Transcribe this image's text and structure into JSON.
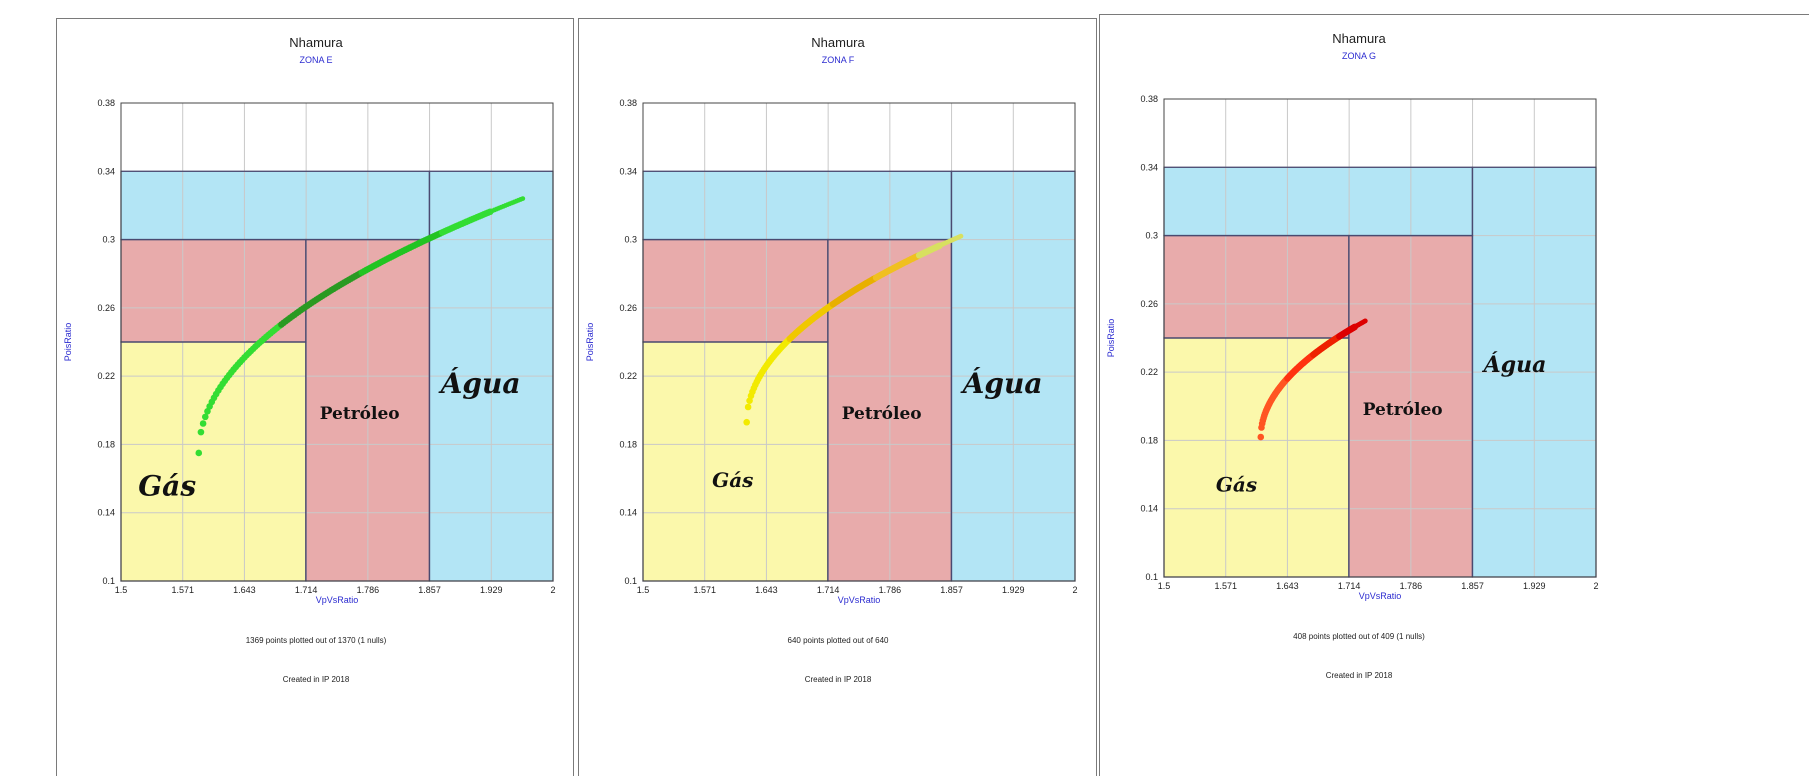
{
  "chart_data": [
    {
      "type": "scatter",
      "title": "Nhamura",
      "subtitle": "ZONA E",
      "xlabel": "VpVsRatio",
      "ylabel": "PoisRatio",
      "xlim": [
        1.5,
        2
      ],
      "ylim": [
        0.1,
        0.38
      ],
      "x_ticks": [
        "1.5",
        "1.571",
        "1.643",
        "1.714",
        "1.786",
        "1.857",
        "1.929",
        "2"
      ],
      "y_ticks": [
        "0.1",
        "0.14",
        "0.18",
        "0.22",
        "0.26",
        "0.3",
        "0.34",
        "0.38"
      ],
      "regions": [
        {
          "name": "Gás",
          "x": [
            1.5,
            1.714
          ],
          "y": [
            0.1,
            0.24
          ],
          "color": "#fbf8ab"
        },
        {
          "name": "Petróleo",
          "x": [
            1.714,
            1.857
          ],
          "y": [
            0.1,
            0.3
          ],
          "color": "#e8abab"
        },
        {
          "name": "",
          "x": [
            1.5,
            1.714
          ],
          "y": [
            0.24,
            0.3
          ],
          "color": "#e8abab"
        },
        {
          "name": "",
          "x": [
            1.5,
            1.857
          ],
          "y": [
            0.3,
            0.34
          ],
          "color": "#b3e5f5"
        },
        {
          "name": "Água",
          "x": [
            1.857,
            2
          ],
          "y": [
            0.1,
            0.34
          ],
          "color": "#b3e5f5"
        }
      ],
      "labels": [
        {
          "text": "Gás",
          "x": 1.52,
          "y": 0.15,
          "size": 28
        },
        {
          "text": "Petróleo",
          "x": 1.73,
          "y": 0.195,
          "size": 17
        },
        {
          "text": "Água",
          "x": 1.87,
          "y": 0.21,
          "size": 28
        }
      ],
      "series": [
        {
          "x_start": 1.59,
          "x_end": 1.965,
          "y_start": 0.175,
          "y_end": 0.324,
          "colors": [
            "#33dd33",
            "#2a9a22",
            "#22c422",
            "#33dd33"
          ]
        }
      ],
      "points_note": "1369 points plotted out of 1370 (1 nulls)",
      "created_note": "Created in IP 2018"
    },
    {
      "type": "scatter",
      "title": "Nhamura",
      "subtitle": "ZONA F",
      "xlabel": "VpVsRatio",
      "ylabel": "PoisRatio",
      "xlim": [
        1.5,
        2
      ],
      "ylim": [
        0.1,
        0.38
      ],
      "x_ticks": [
        "1.5",
        "1.571",
        "1.643",
        "1.714",
        "1.786",
        "1.857",
        "1.929",
        "2"
      ],
      "y_ticks": [
        "0.1",
        "0.14",
        "0.18",
        "0.22",
        "0.26",
        "0.3",
        "0.34",
        "0.38"
      ],
      "regions": [
        {
          "name": "Gás",
          "x": [
            1.5,
            1.714
          ],
          "y": [
            0.1,
            0.24
          ],
          "color": "#fbf8ab"
        },
        {
          "name": "Petróleo",
          "x": [
            1.714,
            1.857
          ],
          "y": [
            0.1,
            0.3
          ],
          "color": "#e8abab"
        },
        {
          "name": "",
          "x": [
            1.5,
            1.714
          ],
          "y": [
            0.24,
            0.3
          ],
          "color": "#e8abab"
        },
        {
          "name": "",
          "x": [
            1.5,
            1.857
          ],
          "y": [
            0.3,
            0.34
          ],
          "color": "#b3e5f5"
        },
        {
          "name": "Água",
          "x": [
            1.857,
            2
          ],
          "y": [
            0.1,
            0.34
          ],
          "color": "#b3e5f5"
        }
      ],
      "labels": [
        {
          "text": "Gás",
          "x": 1.58,
          "y": 0.155,
          "size": 20
        },
        {
          "text": "Petróleo",
          "x": 1.73,
          "y": 0.195,
          "size": 17
        },
        {
          "text": "Água",
          "x": 1.87,
          "y": 0.21,
          "size": 28
        }
      ],
      "series": [
        {
          "x_start": 1.62,
          "x_end": 1.868,
          "y_start": 0.193,
          "y_end": 0.302,
          "colors": [
            "#f2ea00",
            "#f0c800",
            "#e8b000",
            "#f0c020",
            "#d8e060"
          ]
        }
      ],
      "points_note": "640 points plotted out of 640",
      "created_note": "Created in IP 2018"
    },
    {
      "type": "scatter",
      "title": "Nhamura",
      "subtitle": "ZONA G",
      "xlabel": "VpVsRatio",
      "ylabel": "PoisRatio",
      "xlim": [
        1.5,
        2
      ],
      "ylim": [
        0.1,
        0.38
      ],
      "x_ticks": [
        "1.5",
        "1.571",
        "1.643",
        "1.714",
        "1.786",
        "1.857",
        "1.929",
        "2"
      ],
      "y_ticks": [
        "0.1",
        "0.14",
        "0.18",
        "0.22",
        "0.26",
        "0.3",
        "0.34",
        "0.38"
      ],
      "regions": [
        {
          "name": "Gás",
          "x": [
            1.5,
            1.714
          ],
          "y": [
            0.1,
            0.24
          ],
          "color": "#fbf8ab"
        },
        {
          "name": "Petróleo",
          "x": [
            1.714,
            1.857
          ],
          "y": [
            0.1,
            0.3
          ],
          "color": "#e8abab"
        },
        {
          "name": "",
          "x": [
            1.5,
            1.714
          ],
          "y": [
            0.24,
            0.3
          ],
          "color": "#e8abab"
        },
        {
          "name": "",
          "x": [
            1.5,
            1.857
          ],
          "y": [
            0.3,
            0.34
          ],
          "color": "#b3e5f5"
        },
        {
          "name": "Água",
          "x": [
            1.857,
            2
          ],
          "y": [
            0.1,
            0.34
          ],
          "color": "#b3e5f5"
        }
      ],
      "labels": [
        {
          "text": "Gás",
          "x": 1.56,
          "y": 0.15,
          "size": 20
        },
        {
          "text": "Petróleo",
          "x": 1.73,
          "y": 0.195,
          "size": 17
        },
        {
          "text": "Água",
          "x": 1.87,
          "y": 0.22,
          "size": 22
        }
      ],
      "series": [
        {
          "x_start": 1.612,
          "x_end": 1.733,
          "y_start": 0.182,
          "y_end": 0.25,
          "colors": [
            "#ff5522",
            "#ff3311",
            "#ee2200",
            "#dd0000"
          ]
        }
      ],
      "points_note": "408 points plotted out of 409 (1 nulls)",
      "created_note": "Created in IP 2018"
    }
  ]
}
